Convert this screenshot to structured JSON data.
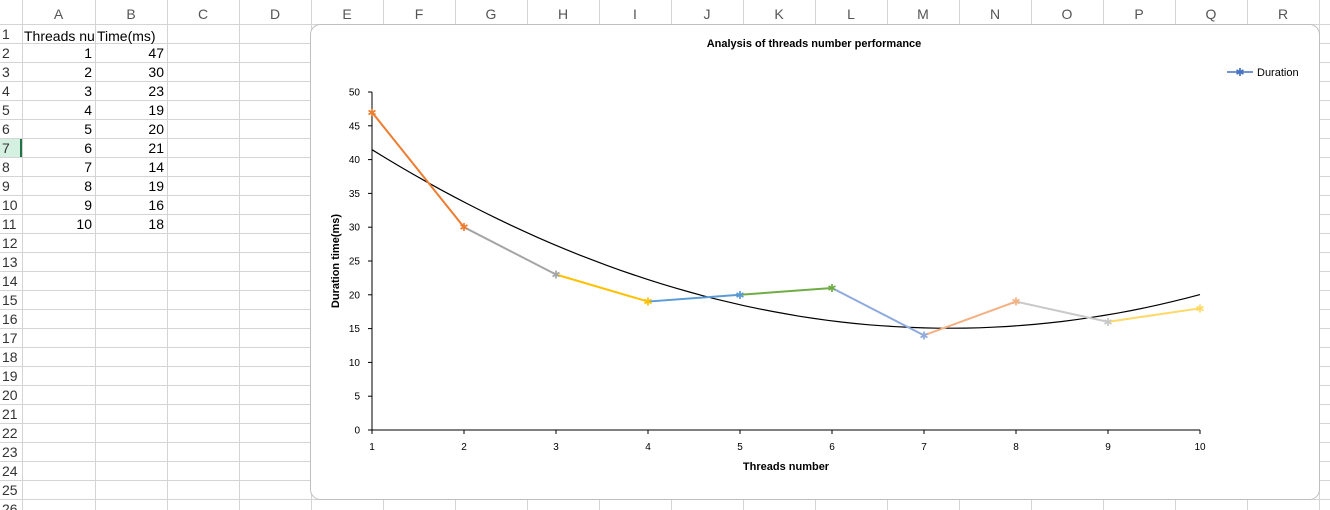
{
  "sheet": {
    "columns": [
      "A",
      "B",
      "C",
      "D",
      "E",
      "F",
      "G",
      "H",
      "I",
      "J",
      "K",
      "L",
      "M",
      "N",
      "O",
      "P",
      "Q",
      "R"
    ],
    "rows": [
      "1",
      "2",
      "3",
      "4",
      "5",
      "6",
      "7",
      "8",
      "9",
      "10",
      "11",
      "12",
      "13",
      "14",
      "15",
      "16",
      "17",
      "18",
      "19",
      "20",
      "21",
      "22",
      "23",
      "24",
      "25",
      "26"
    ],
    "selected_row": "7",
    "header_cells": {
      "a1": "Threads nu",
      "b1": "Time(ms)"
    },
    "threads": [
      "1",
      "2",
      "3",
      "4",
      "5",
      "6",
      "7",
      "8",
      "9",
      "10"
    ],
    "times": [
      "47",
      "30",
      "23",
      "19",
      "20",
      "21",
      "14",
      "19",
      "16",
      "18"
    ]
  },
  "chart_data": {
    "type": "line",
    "title": "Analysis of threads number performance",
    "xlabel": "Threads number",
    "ylabel": "Duration time(ms)",
    "categories": [
      "1",
      "2",
      "3",
      "4",
      "5",
      "6",
      "7",
      "8",
      "9",
      "10"
    ],
    "series": [
      {
        "name": "Duration",
        "values": [
          47,
          30,
          23,
          19,
          20,
          21,
          14,
          19,
          16,
          18
        ]
      }
    ],
    "ylim": [
      0,
      50
    ],
    "y_ticks": [
      "0",
      "5",
      "10",
      "15",
      "20",
      "25",
      "30",
      "35",
      "40",
      "45",
      "50"
    ],
    "trendline": "polynomial",
    "legend": "top-right",
    "grid": false,
    "legend_color": "#4472c4",
    "segment_colors": [
      "#ed7d31",
      "#a5a5a5",
      "#ffc000",
      "#5b9bd5",
      "#70ad47",
      "#8faadc",
      "#f4b183",
      "#c9c9c9",
      "#ffd966"
    ]
  }
}
